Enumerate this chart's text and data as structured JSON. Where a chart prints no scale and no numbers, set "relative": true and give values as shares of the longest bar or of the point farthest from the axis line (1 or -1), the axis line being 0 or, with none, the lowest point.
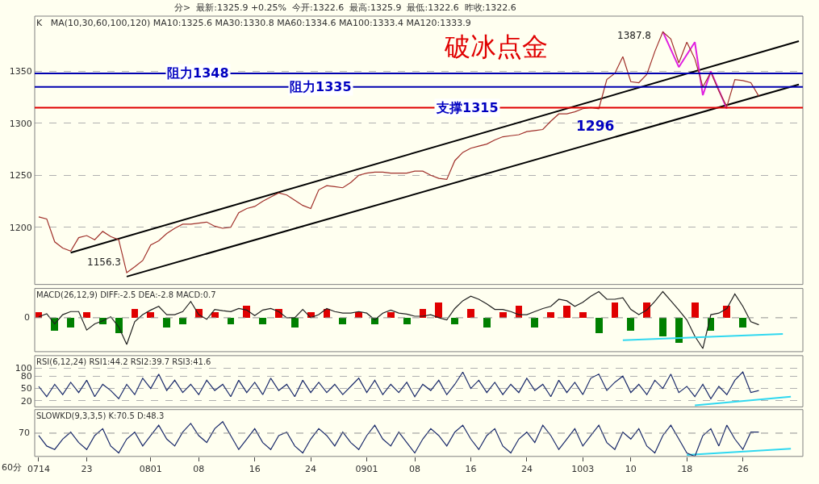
{
  "chart_data": [
    {
      "type": "line",
      "title": "破冰点金",
      "annotations": [
        "分>  最新:1325.9 +0.25%  今开:1322.6  最高:1325.9  最低:1322.6  昨收:1322.6",
        "K   MA(10,30,60,100,120) MA10:1325.6 MA30:1330.8 MA60:1334.6 MA100:1333.4 MA120:1333.9",
        "1296",
        "1387.8",
        "1156.3"
      ],
      "categories": [
        "0714",
        null,
        null,
        null,
        null,
        null,
        "23",
        null,
        null,
        null,
        null,
        null,
        null,
        null,
        "0801",
        null,
        null,
        null,
        null,
        null,
        "08",
        null,
        null,
        null,
        null,
        null,
        null,
        "16",
        null,
        null,
        null,
        null,
        null,
        null,
        "24",
        null,
        null,
        null,
        null,
        null,
        null,
        "0901",
        null,
        null,
        null,
        null,
        null,
        "08",
        null,
        null,
        null,
        null,
        null,
        null,
        "16",
        null,
        null,
        null,
        null,
        null,
        null,
        "24",
        null,
        null,
        null,
        null,
        null,
        null,
        "1003",
        null,
        null,
        null,
        null,
        null,
        "10",
        null,
        null,
        null,
        null,
        null,
        null,
        "18",
        null,
        null,
        null,
        null,
        null,
        null,
        "26",
        null,
        null,
        null,
        null,
        null,
        null,
        null
      ],
      "series": [
        {
          "color": "#a0302a",
          "values": [
            1210,
            1208,
            1186,
            1180,
            1177,
            1190,
            1192,
            1188,
            1196,
            1191,
            1188,
            1156.3,
            1162,
            1168,
            1183,
            1187,
            1194,
            1199,
            1203,
            1203,
            1204,
            1205,
            1201,
            1199,
            1200,
            1214,
            1218,
            1220,
            1225,
            1229,
            1233,
            1231,
            1226,
            1221,
            1218,
            1236,
            1240,
            1239,
            1238,
            1243,
            1250,
            1252,
            1253,
            1253,
            1252,
            1252,
            1252,
            1254,
            1254,
            1250,
            1247,
            1246,
            1264,
            1272,
            1276,
            1278,
            1280,
            1284,
            1287,
            1288,
            1289,
            1292,
            1293,
            1294,
            1302,
            1309,
            1309,
            1311,
            1314,
            1315,
            1314,
            1342,
            1348,
            1364,
            1340,
            1339,
            1347,
            1369,
            1387.8,
            1381,
            1358,
            1378,
            1362,
            1335,
            1349,
            1331,
            1316,
            1342,
            1341,
            1339,
            1325.9,
            null,
            null,
            null,
            null,
            null
          ]
        },
        {
          "color": "#000000",
          "values": [
            null,
            null,
            null,
            null,
            1175.6,
            null,
            null,
            null,
            null,
            null,
            null,
            null,
            null,
            null,
            null,
            null,
            null,
            null,
            null,
            null,
            null,
            null,
            null,
            null,
            null,
            null,
            null,
            null,
            null,
            null,
            null,
            null,
            null,
            null,
            null,
            null,
            null,
            null,
            null,
            null,
            null,
            null,
            null,
            null,
            null,
            null,
            null,
            null,
            null,
            null,
            null,
            null,
            null,
            null,
            null,
            null,
            null,
            null,
            null,
            null,
            null,
            null,
            null,
            null,
            null,
            null,
            null,
            null,
            null,
            null,
            null,
            null,
            null,
            null,
            null,
            null,
            null,
            null,
            null,
            null,
            null,
            null,
            null,
            null,
            null,
            null,
            null,
            null,
            null,
            null,
            null,
            null,
            null,
            null,
            null,
            1378.9
          ]
        },
        {
          "color": "#000000",
          "values": [
            null,
            null,
            null,
            null,
            null,
            null,
            null,
            null,
            null,
            null,
            null,
            1152.6,
            null,
            null,
            null,
            null,
            null,
            null,
            null,
            null,
            null,
            null,
            null,
            null,
            null,
            null,
            null,
            null,
            null,
            null,
            null,
            null,
            null,
            null,
            null,
            null,
            null,
            null,
            null,
            null,
            null,
            null,
            null,
            null,
            null,
            null,
            null,
            null,
            null,
            null,
            null,
            null,
            null,
            null,
            null,
            null,
            null,
            null,
            null,
            null,
            null,
            null,
            null,
            null,
            null,
            null,
            null,
            null,
            null,
            null,
            null,
            null,
            null,
            null,
            null,
            null,
            null,
            null,
            null,
            null,
            null,
            null,
            null,
            null,
            null,
            null,
            null,
            null,
            null,
            null,
            null,
            null,
            null,
            null,
            null,
            1337.3
          ]
        },
        {
          "color": "#e020e0",
          "values": [
            null,
            null,
            null,
            null,
            null,
            null,
            null,
            null,
            null,
            null,
            null,
            null,
            null,
            null,
            null,
            null,
            null,
            null,
            null,
            null,
            null,
            null,
            null,
            null,
            null,
            null,
            null,
            null,
            null,
            null,
            null,
            null,
            null,
            null,
            null,
            null,
            null,
            null,
            null,
            null,
            null,
            null,
            null,
            null,
            null,
            null,
            null,
            null,
            null,
            null,
            null,
            null,
            null,
            null,
            null,
            null,
            null,
            null,
            null,
            null,
            null,
            null,
            null,
            null,
            null,
            null,
            null,
            null,
            null,
            null,
            null,
            null,
            null,
            null,
            null,
            null,
            null,
            null,
            1388,
            null,
            1354,
            null,
            1378,
            1327,
            1350,
            null,
            1314,
            null,
            null,
            null,
            null,
            null,
            null,
            null,
            null,
            null
          ]
        }
      ],
      "ylim": [
        1145,
        1403
      ],
      "yticks": [
        1200,
        1250,
        1300,
        1350
      ],
      "grid": "y",
      "tick_labels": "y",
      "ref_lines": [
        {
          "axis": "y",
          "value": 1348,
          "label": "阻力1348",
          "color": "#0000b0"
        },
        {
          "axis": "y",
          "value": 1335,
          "label": "阻力1335",
          "color": "#0000b0"
        },
        {
          "axis": "y",
          "value": 1315,
          "label": "支撑1315",
          "color": "#e00000"
        }
      ]
    },
    {
      "type": "line",
      "title": "MACD(26,12,9) DIFF:-2.5 DEA:-2.8 MACD:0.7",
      "relative": true,
      "tick_labels": false,
      "categories": [
        "0714",
        null,
        null,
        null,
        null,
        null,
        "23",
        null,
        null,
        null,
        null,
        null,
        null,
        null,
        "0801",
        null,
        null,
        null,
        null,
        null,
        "08",
        null,
        null,
        null,
        null,
        null,
        null,
        "16",
        null,
        null,
        null,
        null,
        null,
        null,
        "24",
        null,
        null,
        null,
        null,
        null,
        null,
        "0901",
        null,
        null,
        null,
        null,
        null,
        "08",
        null,
        null,
        null,
        null,
        null,
        null,
        "16",
        null,
        null,
        null,
        null,
        null,
        null,
        "24",
        null,
        null,
        null,
        null,
        null,
        null,
        "1003",
        null,
        null,
        null,
        null,
        null,
        "10",
        null,
        null,
        null,
        null,
        null,
        null,
        "18",
        null,
        null,
        null,
        null,
        null,
        null,
        "26",
        null,
        null,
        null,
        null,
        null,
        null,
        null
      ],
      "series": [
        {
          "type": "bar",
          "values": [
            0.2,
            null,
            -0.4,
            null,
            -0.3,
            null,
            0.2,
            null,
            -0.2,
            null,
            -0.5,
            null,
            0.3,
            null,
            0.2,
            null,
            -0.3,
            null,
            -0.2,
            null,
            0.3,
            null,
            0.2,
            null,
            -0.2,
            null,
            0.4,
            null,
            -0.2,
            null,
            0.3,
            null,
            -0.3,
            null,
            0.2,
            null,
            0.3,
            null,
            -0.2,
            null,
            0.2,
            null,
            -0.2,
            null,
            0.2,
            null,
            -0.2,
            null,
            0.3,
            null,
            0.5,
            null,
            -0.2,
            null,
            0.3,
            null,
            -0.3,
            null,
            0.2,
            null,
            0.4,
            null,
            -0.3,
            null,
            0.2,
            null,
            0.4,
            null,
            0.2,
            null,
            -0.5,
            null,
            0.5,
            null,
            -0.4,
            null,
            0.5,
            null,
            -0.6,
            null,
            -0.8,
            null,
            0.5,
            null,
            -0.4,
            null,
            0.4,
            null,
            -0.3,
            null,
            null,
            null,
            null,
            null,
            null,
            null
          ],
          "colors": [
            "#e00000",
            null,
            "#008000",
            null,
            "#008000",
            null,
            "#e00000",
            null,
            "#008000",
            null,
            "#008000",
            null,
            "#e00000",
            null,
            "#e00000",
            null,
            "#008000",
            null,
            "#008000",
            null,
            "#e00000",
            null,
            "#e00000",
            null,
            "#008000",
            null,
            "#e00000",
            null,
            "#008000",
            null,
            "#e00000",
            null,
            "#008000",
            null,
            "#e00000",
            null,
            "#e00000",
            null,
            "#008000",
            null,
            "#e00000",
            null,
            "#008000",
            null,
            "#e00000",
            null,
            "#008000",
            null,
            "#e00000",
            null,
            "#e00000",
            null,
            "#008000",
            null,
            "#e00000",
            null,
            "#008000",
            null,
            "#e00000",
            null,
            "#e00000",
            null,
            "#008000",
            null,
            "#e00000",
            null,
            "#e00000",
            null,
            "#e00000",
            null,
            "#008000",
            null,
            "#e00000",
            null,
            "#008000",
            null,
            "#e00000",
            null,
            "#008000",
            null,
            "#008000",
            null,
            "#e00000",
            null,
            "#008000",
            null,
            "#e00000",
            null,
            "#008000",
            null,
            null,
            null,
            null,
            null,
            null,
            null
          ]
        },
        {
          "color": "#202020",
          "values": [
            0.03,
            0.13,
            -0.2,
            0.1,
            0.2,
            0.2,
            -0.4,
            -0.2,
            -0.1,
            0.03,
            -0.3,
            -0.87,
            -0.13,
            0.1,
            0.25,
            0.37,
            0.1,
            0.1,
            0.2,
            0.53,
            0.1,
            -0.05,
            0.27,
            0.23,
            0.2,
            0.3,
            0.25,
            0.07,
            0.25,
            0.3,
            0.2,
            0,
            0,
            0.27,
            0,
            0.1,
            0.3,
            0.2,
            0.15,
            0.15,
            0.2,
            0.15,
            -0.07,
            0.15,
            0.25,
            0.15,
            0.12,
            0.05,
            0.05,
            0.1,
            0,
            -0.07,
            0.3,
            0.55,
            0.7,
            0.6,
            0.45,
            0.27,
            0.27,
            0.2,
            0.1,
            0.1,
            0.2,
            0.3,
            0.37,
            0.6,
            0.55,
            0.37,
            0.5,
            0.7,
            0.85,
            0.6,
            0.6,
            0.65,
            0.27,
            0.1,
            0.25,
            0.53,
            0.85,
            0.55,
            0.25,
            -0.07,
            -0.6,
            -1,
            0.1,
            0.15,
            0.3,
            0.77,
            0.37,
            -0.13,
            -0.23,
            null,
            null,
            null,
            null,
            null
          ]
        },
        {
          "color": "#30d8f0",
          "values": [
            null,
            null,
            null,
            null,
            null,
            null,
            null,
            null,
            null,
            null,
            null,
            null,
            null,
            null,
            null,
            null,
            null,
            null,
            null,
            null,
            null,
            null,
            null,
            null,
            null,
            null,
            null,
            null,
            null,
            null,
            null,
            null,
            null,
            null,
            null,
            null,
            null,
            null,
            null,
            null,
            null,
            null,
            null,
            null,
            null,
            null,
            null,
            null,
            null,
            null,
            null,
            null,
            null,
            null,
            null,
            null,
            null,
            null,
            null,
            null,
            null,
            null,
            null,
            null,
            null,
            null,
            null,
            null,
            null,
            null,
            null,
            null,
            null,
            -0.73,
            null,
            null,
            null,
            null,
            null,
            null,
            null,
            null,
            null,
            null,
            null,
            null,
            null,
            null,
            null,
            null,
            null,
            null,
            null,
            -0.53,
            null,
            null
          ]
        }
      ],
      "ref_lines": [
        {
          "axis": "y",
          "value": 0,
          "label": "0",
          "color": "#909090",
          "line_style": "dashed"
        }
      ]
    },
    {
      "type": "line",
      "title": "RSI(6,12,24) RSI1:44.2 RSI2:39.7 RSI3:41.6",
      "ylim": [
        5,
        130
      ],
      "yticks": [
        20,
        50,
        80,
        100
      ],
      "grid": "y",
      "tick_labels": "y",
      "categories": [
        "0714",
        null,
        null,
        null,
        null,
        null,
        "23",
        null,
        null,
        null,
        null,
        null,
        null,
        null,
        "0801",
        null,
        null,
        null,
        null,
        null,
        "08",
        null,
        null,
        null,
        null,
        null,
        null,
        "16",
        null,
        null,
        null,
        null,
        null,
        null,
        "24",
        null,
        null,
        null,
        null,
        null,
        null,
        "0901",
        null,
        null,
        null,
        null,
        null,
        "08",
        null,
        null,
        null,
        null,
        null,
        null,
        "16",
        null,
        null,
        null,
        null,
        null,
        null,
        "24",
        null,
        null,
        null,
        null,
        null,
        null,
        "1003",
        null,
        null,
        null,
        null,
        null,
        "10",
        null,
        null,
        null,
        null,
        null,
        null,
        "18",
        null,
        null,
        null,
        null,
        null,
        null,
        "26",
        null,
        null,
        null,
        null,
        null,
        null,
        null
      ],
      "series": [
        {
          "color": "#1a2a6a",
          "values": [
            55,
            30,
            60,
            35,
            65,
            40,
            70,
            30,
            60,
            45,
            25,
            60,
            35,
            75,
            50,
            85,
            45,
            70,
            40,
            60,
            35,
            70,
            45,
            60,
            30,
            70,
            40,
            65,
            35,
            75,
            45,
            60,
            30,
            70,
            40,
            65,
            40,
            60,
            35,
            55,
            75,
            40,
            70,
            35,
            60,
            40,
            65,
            30,
            60,
            45,
            70,
            35,
            60,
            90,
            50,
            70,
            40,
            65,
            35,
            60,
            40,
            75,
            45,
            60,
            30,
            70,
            40,
            65,
            35,
            75,
            85,
            45,
            65,
            80,
            40,
            60,
            35,
            70,
            50,
            85,
            40,
            55,
            30,
            60,
            25,
            55,
            35,
            70,
            90,
            40,
            45,
            null,
            null,
            null,
            null,
            null
          ]
        },
        {
          "color": "#30d8f0",
          "values": [
            null,
            null,
            null,
            null,
            null,
            null,
            null,
            null,
            null,
            null,
            null,
            null,
            null,
            null,
            null,
            null,
            null,
            null,
            null,
            null,
            null,
            null,
            null,
            null,
            null,
            null,
            null,
            null,
            null,
            null,
            null,
            null,
            null,
            null,
            null,
            null,
            null,
            null,
            null,
            null,
            null,
            null,
            null,
            null,
            null,
            null,
            null,
            null,
            null,
            null,
            null,
            null,
            null,
            null,
            null,
            null,
            null,
            null,
            null,
            null,
            null,
            null,
            null,
            null,
            null,
            null,
            null,
            null,
            null,
            null,
            null,
            null,
            null,
            null,
            null,
            null,
            null,
            null,
            null,
            null,
            null,
            null,
            9,
            null,
            null,
            null,
            null,
            null,
            null,
            null,
            null,
            null,
            null,
            null,
            30,
            null
          ]
        }
      ]
    },
    {
      "type": "line",
      "title": "SLOWKD(9,3,3,5) K:70.5 D:48.3",
      "relative": true,
      "tick_labels": "x",
      "annotations": [
        "60分",
        "70"
      ],
      "categories": [
        "0714",
        null,
        null,
        null,
        null,
        null,
        "23",
        null,
        null,
        null,
        null,
        null,
        null,
        null,
        "0801",
        null,
        null,
        null,
        null,
        null,
        "08",
        null,
        null,
        null,
        null,
        null,
        null,
        "16",
        null,
        null,
        null,
        null,
        null,
        null,
        "24",
        null,
        null,
        null,
        null,
        null,
        null,
        "0901",
        null,
        null,
        null,
        null,
        null,
        "08",
        null,
        null,
        null,
        null,
        null,
        null,
        "16",
        null,
        null,
        null,
        null,
        null,
        null,
        "24",
        null,
        null,
        null,
        null,
        null,
        null,
        "1003",
        null,
        null,
        null,
        null,
        null,
        "10",
        null,
        null,
        null,
        null,
        null,
        null,
        "18",
        null,
        null,
        null,
        null,
        null,
        null,
        "26",
        null,
        null,
        null,
        null,
        null,
        null,
        null
      ],
      "series": [
        {
          "color": "#1a2a6a",
          "values": [
            0.6,
            0.3,
            0.2,
            0.5,
            0.7,
            0.4,
            0.2,
            0.6,
            0.8,
            0.3,
            0.1,
            0.5,
            0.7,
            0.3,
            0.6,
            0.9,
            0.5,
            0.3,
            0.7,
            0.95,
            0.6,
            0.4,
            0.8,
            1,
            0.6,
            0.2,
            0.5,
            0.8,
            0.4,
            0.2,
            0.6,
            0.7,
            0.3,
            0.1,
            0.5,
            0.8,
            0.6,
            0.3,
            0.7,
            0.4,
            0.2,
            0.6,
            0.9,
            0.5,
            0.3,
            0.7,
            0.4,
            0.1,
            0.5,
            0.8,
            0.6,
            0.3,
            0.7,
            0.9,
            0.5,
            0.2,
            0.6,
            0.8,
            0.3,
            0.1,
            0.5,
            0.7,
            0.4,
            0.9,
            0.6,
            0.2,
            0.5,
            0.8,
            0.3,
            0.6,
            0.9,
            0.4,
            0.2,
            0.7,
            0.5,
            0.8,
            0.3,
            0.1,
            0.6,
            0.9,
            0.5,
            0.1,
            0,
            0.6,
            0.8,
            0.3,
            0.9,
            0.5,
            0.2,
            0.7,
            0.7,
            null,
            null,
            null,
            null,
            null
          ]
        },
        {
          "color": "#30d8f0",
          "values": [
            null,
            null,
            null,
            null,
            null,
            null,
            null,
            null,
            null,
            null,
            null,
            null,
            null,
            null,
            null,
            null,
            null,
            null,
            null,
            null,
            null,
            null,
            null,
            null,
            null,
            null,
            null,
            null,
            null,
            null,
            null,
            null,
            null,
            null,
            null,
            null,
            null,
            null,
            null,
            null,
            null,
            null,
            null,
            null,
            null,
            null,
            null,
            null,
            null,
            null,
            null,
            null,
            null,
            null,
            null,
            null,
            null,
            null,
            null,
            null,
            null,
            null,
            null,
            null,
            null,
            null,
            null,
            null,
            null,
            null,
            null,
            null,
            null,
            null,
            null,
            null,
            null,
            null,
            null,
            null,
            null,
            0.04,
            null,
            null,
            null,
            null,
            null,
            null,
            null,
            null,
            null,
            null,
            null,
            null,
            0.22,
            null
          ]
        }
      ],
      "ref_lines": [
        {
          "axis": "y",
          "value": 0.67,
          "color": "#909090",
          "line_style": "dashed"
        }
      ]
    }
  ]
}
